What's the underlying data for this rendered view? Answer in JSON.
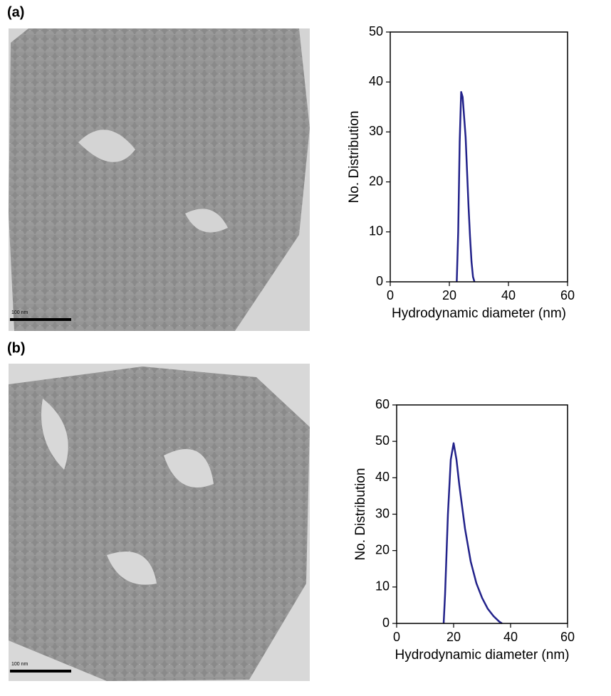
{
  "chart_data": [
    {
      "type": "line",
      "panel_label": "(a)",
      "scale_bar_label": "100 nm",
      "x_label": "Hydrodynamic diameter (nm)",
      "y_label": "No. Distribution",
      "x": [
        22.5,
        23,
        23.5,
        24,
        24.5,
        25,
        25.5,
        26,
        26.5,
        27,
        27.5,
        28,
        28.5
      ],
      "values": [
        0,
        10,
        28,
        38,
        37,
        33,
        29,
        22,
        15,
        9,
        4,
        1,
        0
      ],
      "color": "#22228a",
      "xlim": [
        0,
        60
      ],
      "ylim": [
        0,
        50
      ],
      "xticks": [
        0,
        20,
        40,
        60
      ],
      "yticks": [
        0,
        10,
        20,
        30,
        40,
        50
      ]
    },
    {
      "type": "line",
      "panel_label": "(b)",
      "scale_bar_label": "100 nm",
      "x_label": "Hydrodynamic diameter (nm)",
      "y_label": "No. Distribution",
      "x": [
        16.5,
        17,
        18,
        19,
        20,
        21,
        22,
        24,
        26,
        28,
        30,
        32,
        34,
        36,
        37
      ],
      "values": [
        0,
        8,
        30,
        45,
        49.5,
        45,
        38,
        26,
        17,
        11,
        7,
        4,
        2,
        0.5,
        0
      ],
      "color": "#22228a",
      "xlim": [
        0,
        60
      ],
      "ylim": [
        0,
        60
      ],
      "xticks": [
        0,
        20,
        40,
        60
      ],
      "yticks": [
        0,
        10,
        20,
        30,
        40,
        50,
        60
      ]
    }
  ]
}
